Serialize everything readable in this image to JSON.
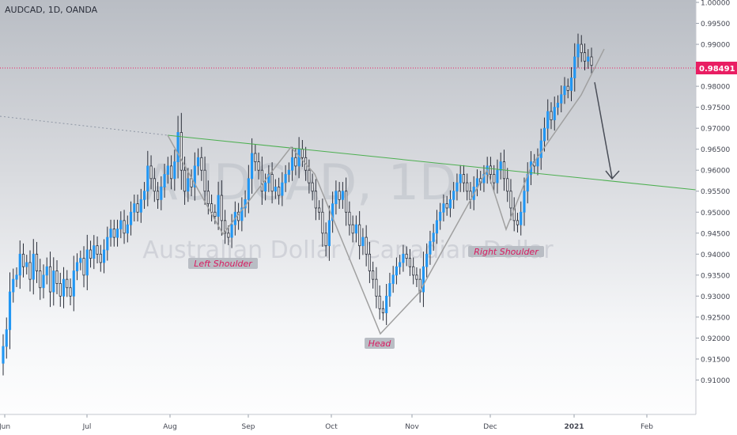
{
  "header": {
    "symbol_line": "AUDCAD, 1D, OANDA"
  },
  "watermark": {
    "line1": "AUDCAD, 1D",
    "line2": "Australian Dollar / Canadian Dollar"
  },
  "colors": {
    "up": "#2196f3",
    "down": "#2a2e39",
    "accent": "#e91e63",
    "pattern": "#9e9e9e",
    "trend": "#4caf50"
  },
  "chart_data": {
    "type": "candlestick",
    "title": "",
    "ylim": [
      0.905,
      1.0
    ],
    "y_ticks": [
      "1.00000",
      "0.99500",
      "0.99000",
      "0.98500",
      "0.98000",
      "0.97500",
      "0.97000",
      "0.96500",
      "0.96000",
      "0.95500",
      "0.95000",
      "0.94500",
      "0.94000",
      "0.93500",
      "0.93000",
      "0.92500",
      "0.92000",
      "0.91500",
      "0.91000"
    ],
    "x_ticks": [
      "Jun",
      "Jul",
      "Aug",
      "Sep",
      "Oct",
      "Nov",
      "Dec",
      "2021",
      "Feb"
    ],
    "last_price": "0.98491",
    "close_series": [
      0.918,
      0.922,
      0.931,
      0.934,
      0.935,
      0.94,
      0.937,
      0.938,
      0.934,
      0.94,
      0.936,
      0.932,
      0.935,
      0.937,
      0.931,
      0.936,
      0.933,
      0.93,
      0.934,
      0.932,
      0.93,
      0.936,
      0.938,
      0.939,
      0.935,
      0.941,
      0.939,
      0.942,
      0.94,
      0.938,
      0.941,
      0.944,
      0.946,
      0.944,
      0.946,
      0.948,
      0.945,
      0.947,
      0.95,
      0.952,
      0.95,
      0.953,
      0.955,
      0.961,
      0.958,
      0.955,
      0.953,
      0.956,
      0.959,
      0.961,
      0.958,
      0.962,
      0.969,
      0.96,
      0.955,
      0.958,
      0.956,
      0.961,
      0.963,
      0.96,
      0.955,
      0.952,
      0.95,
      0.949,
      0.954,
      0.948,
      0.945,
      0.944,
      0.947,
      0.95,
      0.948,
      0.951,
      0.953,
      0.958,
      0.964,
      0.962,
      0.96,
      0.955,
      0.957,
      0.959,
      0.955,
      0.956,
      0.954,
      0.957,
      0.959,
      0.96,
      0.963,
      0.961,
      0.965,
      0.963,
      0.96,
      0.957,
      0.955,
      0.951,
      0.95,
      0.945,
      0.942,
      0.948,
      0.952,
      0.955,
      0.953,
      0.955,
      0.95,
      0.947,
      0.945,
      0.947,
      0.942,
      0.944,
      0.94,
      0.936,
      0.934,
      0.93,
      0.927,
      0.926,
      0.93,
      0.933,
      0.935,
      0.937,
      0.938,
      0.94,
      0.939,
      0.937,
      0.935,
      0.934,
      0.931,
      0.937,
      0.94,
      0.943,
      0.945,
      0.948,
      0.95,
      0.952,
      0.951,
      0.953,
      0.955,
      0.957,
      0.959,
      0.957,
      0.955,
      0.953,
      0.956,
      0.958,
      0.957,
      0.959,
      0.961,
      0.959,
      0.957,
      0.96,
      0.962,
      0.958,
      0.955,
      0.951,
      0.948,
      0.947,
      0.95,
      0.955,
      0.959,
      0.962,
      0.961,
      0.963,
      0.967,
      0.97,
      0.974,
      0.972,
      0.975,
      0.976,
      0.978,
      0.98,
      0.979,
      0.982,
      0.987,
      0.99,
      0.988,
      0.986,
      0.987,
      0.985
    ],
    "annotations": [
      {
        "label": "Left Shoulder",
        "type": "pattern-label"
      },
      {
        "label": "Head",
        "type": "pattern-label"
      },
      {
        "label": "Right Shoulder",
        "type": "pattern-label"
      }
    ]
  }
}
